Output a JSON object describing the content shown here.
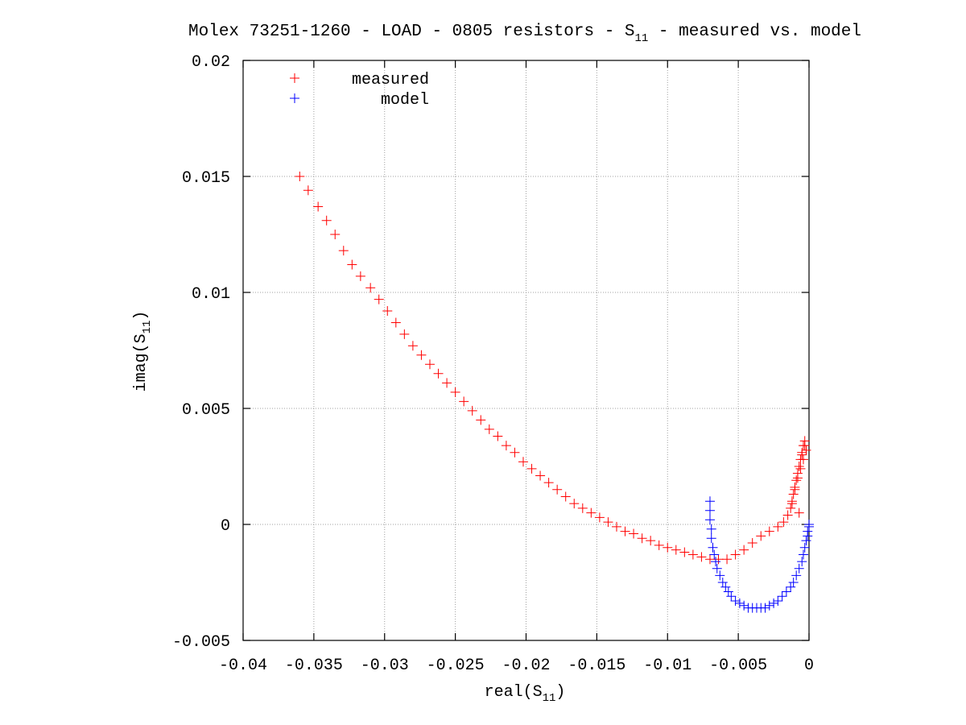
{
  "chart_data": {
    "type": "scatter",
    "title": {
      "prefix": "Molex 73251-1260 - LOAD - 0805 resistors - S",
      "sub": "11",
      "suffix": " - measured vs. model"
    },
    "xlabel": {
      "prefix": "real(S",
      "sub": "11",
      "suffix": ")"
    },
    "ylabel": {
      "prefix": "imag(S",
      "sub": "11",
      "suffix": ")"
    },
    "xlim": [
      -0.04,
      0
    ],
    "ylim": [
      -0.005,
      0.02
    ],
    "xticks": [
      -0.04,
      -0.035,
      -0.03,
      -0.025,
      -0.02,
      -0.015,
      -0.01,
      -0.005,
      0
    ],
    "xtick_labels": [
      "-0.04",
      "-0.035",
      "-0.03",
      "-0.025",
      "-0.02",
      "-0.015",
      "-0.01",
      "-0.005",
      "0"
    ],
    "yticks": [
      -0.005,
      0,
      0.005,
      0.01,
      0.015,
      0.02
    ],
    "ytick_labels": [
      "-0.005",
      "0",
      "0.005",
      "0.01",
      "0.015",
      "0.02"
    ],
    "grid": true,
    "legend": "top-left",
    "marker": "plus",
    "series": [
      {
        "name": "measured",
        "color": "#ff0000",
        "x": [
          -0.036,
          -0.0354,
          -0.0347,
          -0.0341,
          -0.0335,
          -0.0329,
          -0.0323,
          -0.0317,
          -0.031,
          -0.0304,
          -0.0298,
          -0.0292,
          -0.0286,
          -0.028,
          -0.0274,
          -0.0268,
          -0.0262,
          -0.0256,
          -0.025,
          -0.0244,
          -0.0238,
          -0.0232,
          -0.0226,
          -0.022,
          -0.0214,
          -0.0208,
          -0.0202,
          -0.0196,
          -0.019,
          -0.0184,
          -0.0178,
          -0.0172,
          -0.0166,
          -0.016,
          -0.0154,
          -0.0148,
          -0.0142,
          -0.0136,
          -0.013,
          -0.0124,
          -0.0118,
          -0.0112,
          -0.0106,
          -0.01,
          -0.0094,
          -0.0088,
          -0.0082,
          -0.0076,
          -0.007,
          -0.0064,
          -0.0058,
          -0.0052,
          -0.0046,
          -0.004,
          -0.0034,
          -0.0028,
          -0.0022,
          -0.0018,
          -0.0015,
          -0.0013,
          -0.0012,
          -0.0011,
          -0.001,
          -0.0009,
          -0.0008,
          -0.0007,
          -0.0006,
          -0.0005,
          -0.0004,
          -0.0003,
          -0.0002,
          -0.0004,
          -0.0006,
          -0.0008,
          -0.001,
          -0.0012,
          -0.0007,
          -0.0005,
          -0.0003
        ],
        "y": [
          0.015,
          0.0144,
          0.0137,
          0.0131,
          0.0125,
          0.0118,
          0.0112,
          0.0107,
          0.0102,
          0.0097,
          0.0092,
          0.0087,
          0.0082,
          0.0077,
          0.0073,
          0.0069,
          0.0065,
          0.0061,
          0.0057,
          0.0053,
          0.0049,
          0.0045,
          0.0041,
          0.0038,
          0.0034,
          0.0031,
          0.0027,
          0.0024,
          0.0021,
          0.0018,
          0.0015,
          0.0012,
          0.0009,
          0.0007,
          0.0005,
          0.0003,
          0.0001,
          -0.0001,
          -0.0003,
          -0.0004,
          -0.0006,
          -0.0007,
          -0.0009,
          -0.001,
          -0.0011,
          -0.0012,
          -0.0013,
          -0.0014,
          -0.0015,
          -0.0015,
          -0.0015,
          -0.0013,
          -0.0011,
          -0.0008,
          -0.0005,
          -0.0003,
          -0.0001,
          0.0001,
          0.0004,
          0.0007,
          0.001,
          0.0013,
          0.0016,
          0.0019,
          0.0022,
          0.0025,
          0.0028,
          0.0031,
          0.0034,
          0.0036,
          0.0032,
          0.0028,
          0.0024,
          0.002,
          0.0015,
          0.0009,
          0.0005,
          0.003,
          0.0034
        ]
      },
      {
        "name": "model",
        "color": "#0000ff",
        "x": [
          -0.007,
          -0.007,
          -0.007,
          -0.0069,
          -0.0069,
          -0.0068,
          -0.0067,
          -0.0066,
          -0.0065,
          -0.0063,
          -0.0061,
          -0.0059,
          -0.0057,
          -0.0055,
          -0.0052,
          -0.0049,
          -0.0046,
          -0.0043,
          -0.004,
          -0.0037,
          -0.0034,
          -0.0031,
          -0.0028,
          -0.0025,
          -0.0022,
          -0.0019,
          -0.0016,
          -0.0013,
          -0.0011,
          -0.0009,
          -0.0007,
          -0.0005,
          -0.0004,
          -0.0003,
          -0.0002,
          -0.0001,
          -0.0001,
          0.0,
          0.0
        ],
        "y": [
          0.001,
          0.0006,
          0.0002,
          -0.0002,
          -0.0006,
          -0.001,
          -0.0013,
          -0.0016,
          -0.0019,
          -0.0022,
          -0.0025,
          -0.0027,
          -0.0029,
          -0.0031,
          -0.0033,
          -0.0034,
          -0.0035,
          -0.0036,
          -0.0036,
          -0.0036,
          -0.0036,
          -0.0036,
          -0.0035,
          -0.0034,
          -0.0033,
          -0.0031,
          -0.0029,
          -0.0027,
          -0.0025,
          -0.0022,
          -0.0019,
          -0.0016,
          -0.0013,
          -0.001,
          -0.0007,
          -0.0005,
          -0.0003,
          -0.0001,
          0.0
        ]
      }
    ]
  }
}
